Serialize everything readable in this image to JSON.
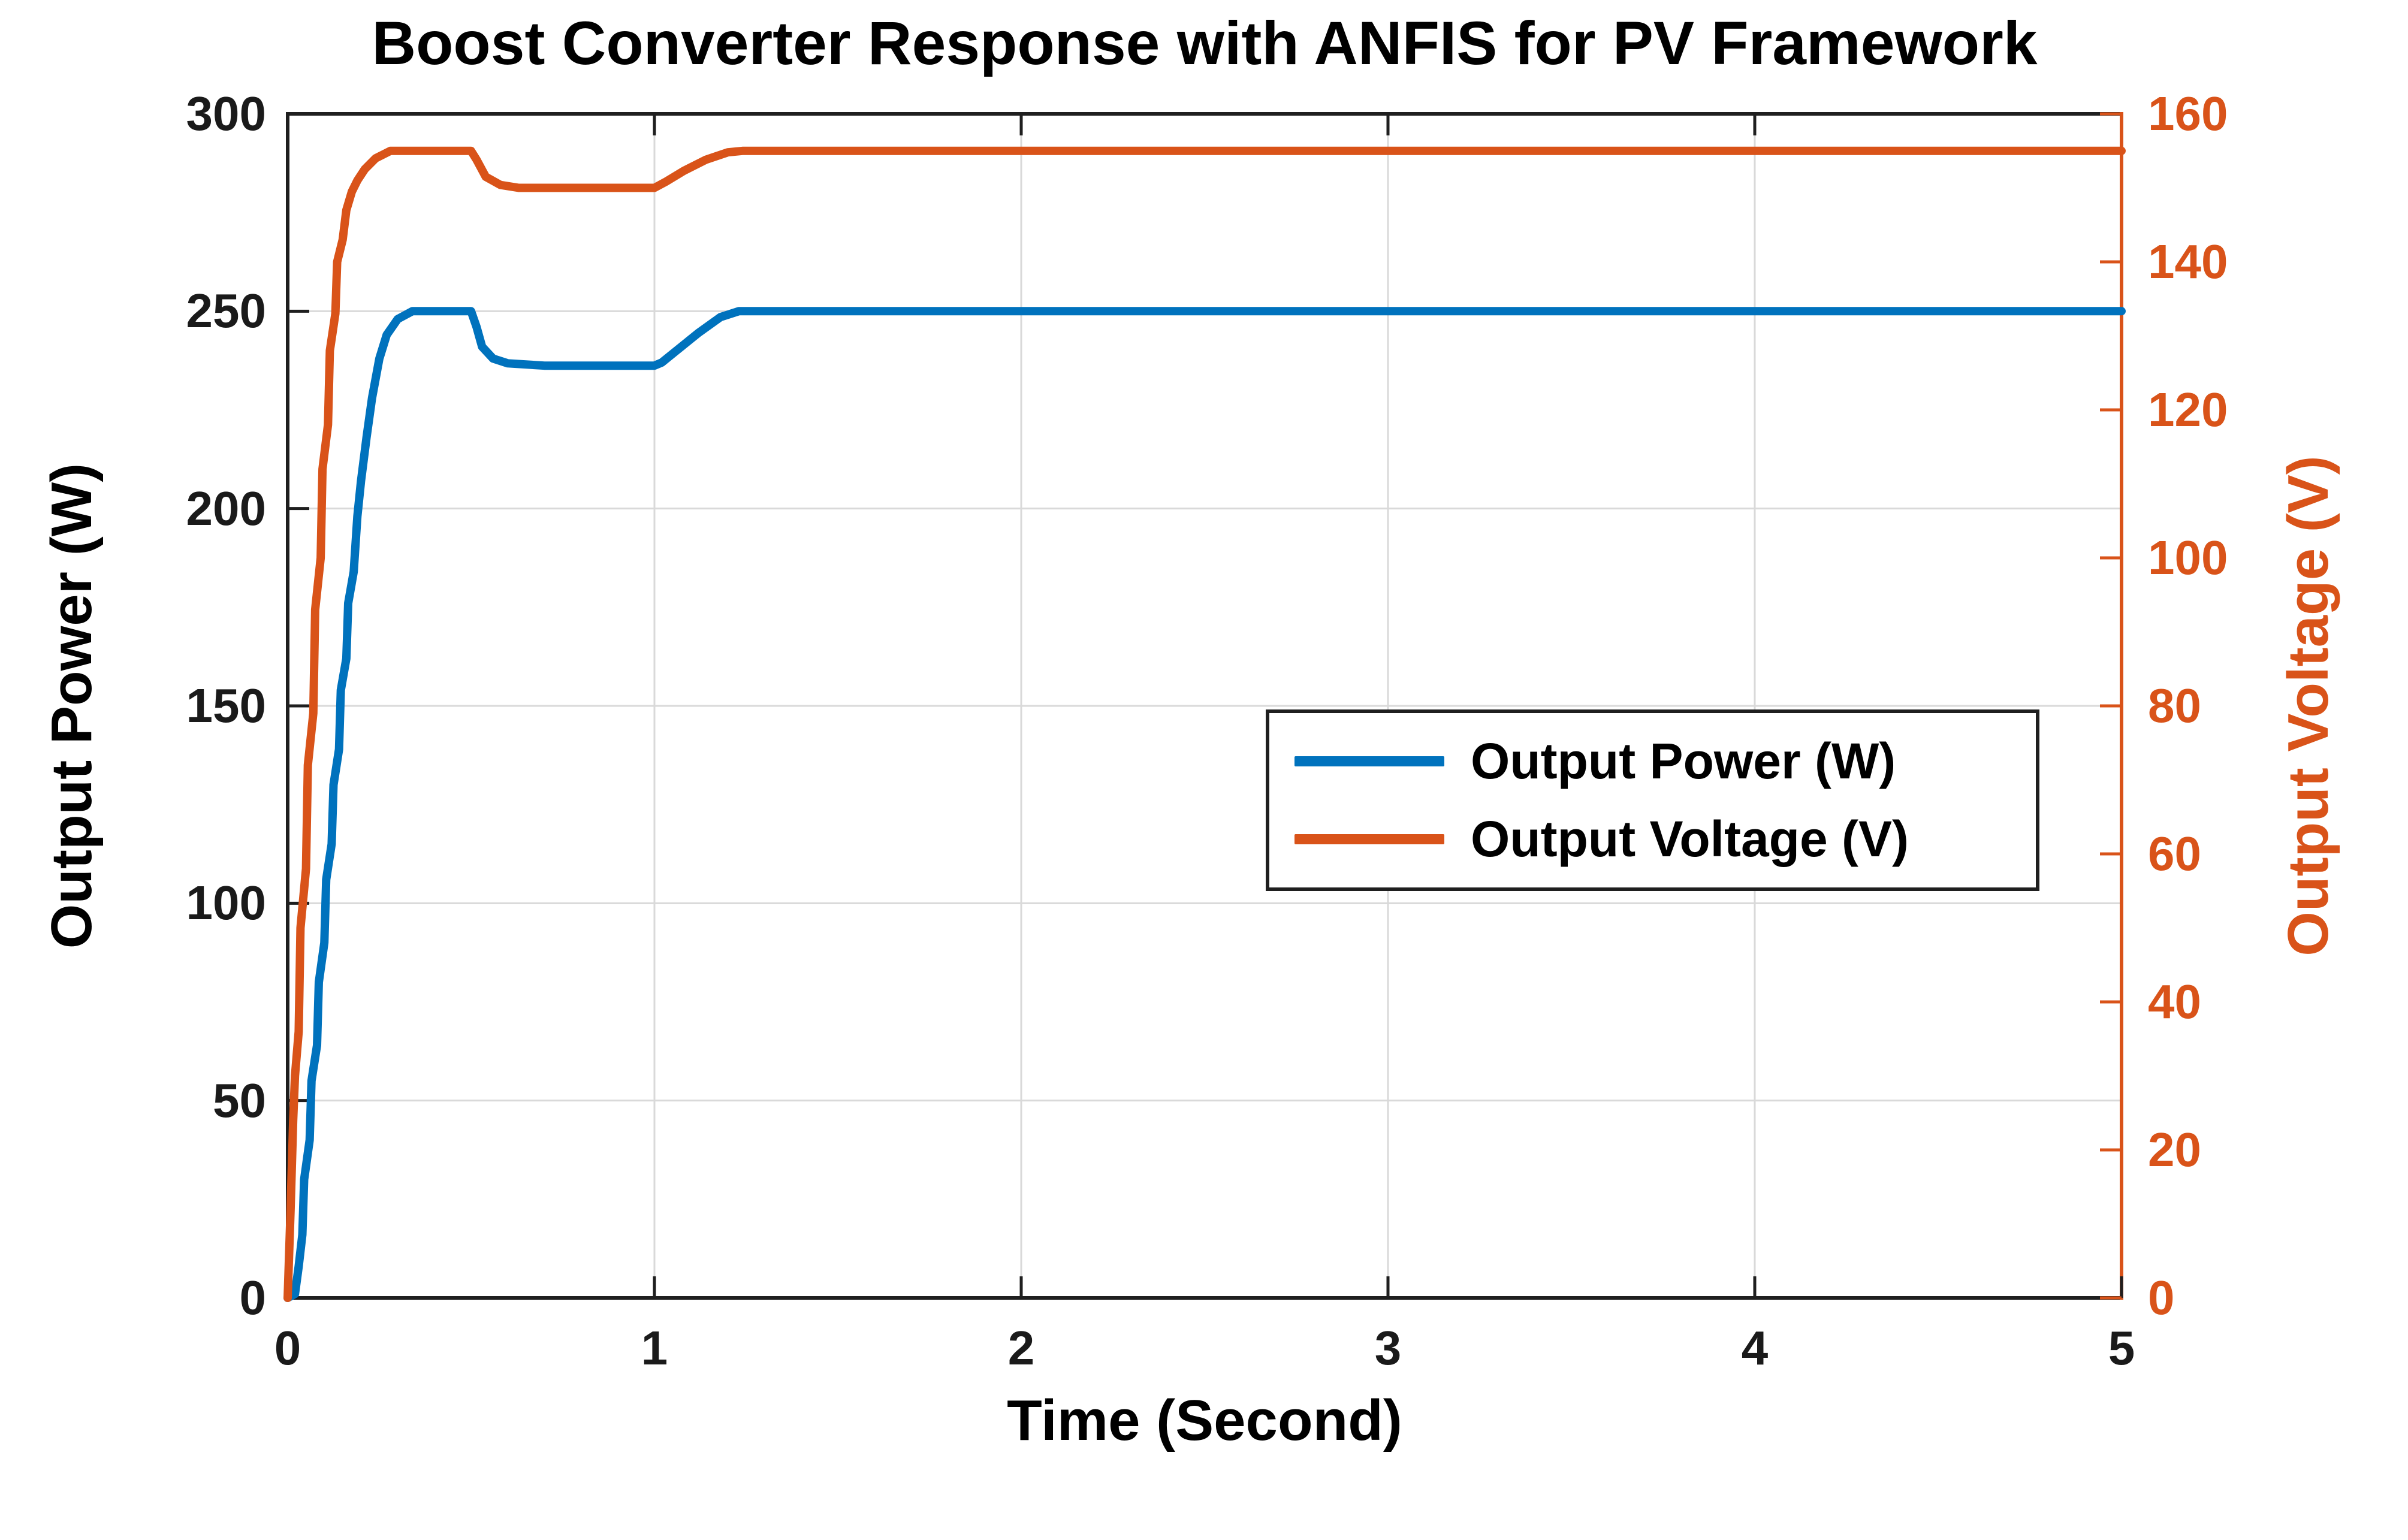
{
  "title": "Boost Converter Response with ANFIS for PV Framework",
  "axes": {
    "x": {
      "label": "Time (Second)",
      "min": 0,
      "max": 5,
      "ticks": [
        0,
        1,
        2,
        3,
        4,
        5
      ],
      "color": "#1a1a1a"
    },
    "y_left": {
      "label": "Output Power (W)",
      "min": 0,
      "max": 300,
      "ticks": [
        0,
        50,
        100,
        150,
        200,
        250,
        300
      ],
      "color": "#1a1a1a"
    },
    "y_right": {
      "label": "Output Voltage (V)",
      "min": 0,
      "max": 160,
      "ticks": [
        0,
        20,
        40,
        60,
        80,
        100,
        120,
        140,
        160
      ],
      "color": "#D95319"
    }
  },
  "legend": {
    "entries": [
      {
        "label": "Output Power (W)",
        "color": "#0072BD"
      },
      {
        "label": "Output Voltage (V)",
        "color": "#D95319"
      }
    ]
  },
  "colors": {
    "power_line": "#0072BD",
    "voltage_line": "#D95319",
    "grid": "#D9D9D9",
    "axis_box": "#1f1f1f",
    "background": "#ffffff"
  },
  "chart_data": {
    "type": "line",
    "title": "Boost Converter Response with ANFIS for PV Framework",
    "xlabel": "Time (Second)",
    "ylabel_left": "Output Power (W)",
    "ylabel_right": "Output Voltage (V)",
    "x_range": [
      0,
      5
    ],
    "y_left_range": [
      0,
      300
    ],
    "y_right_range": [
      0,
      160
    ],
    "grid": true,
    "legend_position": "middle-right",
    "series": [
      {
        "name": "Output Power (W)",
        "axis": "left",
        "color": "#0072BD",
        "steady_state_value": 250,
        "dip_value": 236,
        "points": [
          [
            0,
            0
          ],
          [
            0.02,
            1
          ],
          [
            0.03,
            8
          ],
          [
            0.04,
            16
          ],
          [
            0.045,
            30
          ],
          [
            0.06,
            40
          ],
          [
            0.065,
            55
          ],
          [
            0.08,
            64
          ],
          [
            0.085,
            80
          ],
          [
            0.1,
            90
          ],
          [
            0.105,
            106
          ],
          [
            0.12,
            115
          ],
          [
            0.125,
            130
          ],
          [
            0.14,
            139
          ],
          [
            0.145,
            154
          ],
          [
            0.16,
            162
          ],
          [
            0.165,
            176
          ],
          [
            0.18,
            184
          ],
          [
            0.19,
            198
          ],
          [
            0.2,
            207
          ],
          [
            0.215,
            218
          ],
          [
            0.23,
            228
          ],
          [
            0.25,
            238
          ],
          [
            0.27,
            244
          ],
          [
            0.3,
            248
          ],
          [
            0.34,
            250
          ],
          [
            0.5,
            250
          ],
          [
            0.515,
            246
          ],
          [
            0.53,
            241
          ],
          [
            0.56,
            238
          ],
          [
            0.6,
            236.8
          ],
          [
            0.7,
            236.2
          ],
          [
            1,
            236.2
          ],
          [
            1.02,
            237
          ],
          [
            1.06,
            240
          ],
          [
            1.12,
            244.5
          ],
          [
            1.18,
            248.5
          ],
          [
            1.23,
            250
          ],
          [
            5,
            250
          ]
        ]
      },
      {
        "name": "Output Voltage (V)",
        "axis": "right",
        "color": "#D95319",
        "steady_state_value": 155,
        "dip_value": 150,
        "points": [
          [
            0,
            0
          ],
          [
            0.008,
            12
          ],
          [
            0.015,
            24
          ],
          [
            0.02,
            30
          ],
          [
            0.03,
            36
          ],
          [
            0.035,
            50
          ],
          [
            0.05,
            58
          ],
          [
            0.055,
            72
          ],
          [
            0.07,
            79
          ],
          [
            0.075,
            93
          ],
          [
            0.09,
            100
          ],
          [
            0.095,
            112
          ],
          [
            0.11,
            118
          ],
          [
            0.115,
            128
          ],
          [
            0.13,
            133
          ],
          [
            0.135,
            140
          ],
          [
            0.15,
            143
          ],
          [
            0.16,
            147
          ],
          [
            0.175,
            149.5
          ],
          [
            0.19,
            151
          ],
          [
            0.21,
            152.5
          ],
          [
            0.24,
            154
          ],
          [
            0.28,
            155
          ],
          [
            0.5,
            155
          ],
          [
            0.515,
            153.8
          ],
          [
            0.54,
            151.5
          ],
          [
            0.58,
            150.4
          ],
          [
            0.63,
            150
          ],
          [
            1,
            150
          ],
          [
            1.03,
            150.8
          ],
          [
            1.08,
            152.3
          ],
          [
            1.14,
            153.8
          ],
          [
            1.2,
            154.8
          ],
          [
            1.24,
            155
          ],
          [
            5,
            155
          ]
        ]
      }
    ]
  }
}
